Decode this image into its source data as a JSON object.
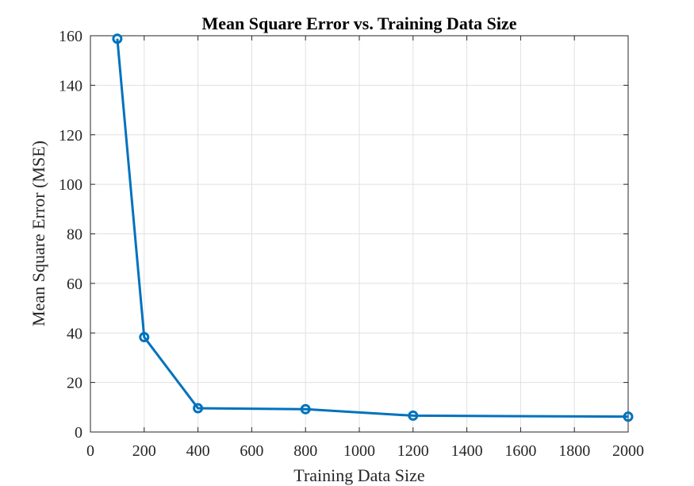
{
  "chart_data": {
    "type": "line",
    "title": "Mean Square Error vs. Training Data Size",
    "xlabel": "Training Data Size",
    "ylabel": "Mean Square Error (MSE)",
    "xlim": [
      0,
      2000
    ],
    "ylim": [
      0,
      160
    ],
    "xticks": [
      0,
      200,
      400,
      600,
      800,
      1000,
      1200,
      1400,
      1600,
      1800,
      2000
    ],
    "yticks": [
      0,
      20,
      40,
      60,
      80,
      100,
      120,
      140,
      160
    ],
    "grid": true,
    "color": "#0072BD",
    "series": [
      {
        "x": [
          100,
          200,
          400,
          800,
          1200,
          2000
        ],
        "values": [
          158.8,
          38.3,
          9.6,
          9.2,
          6.6,
          6.2
        ]
      }
    ]
  }
}
